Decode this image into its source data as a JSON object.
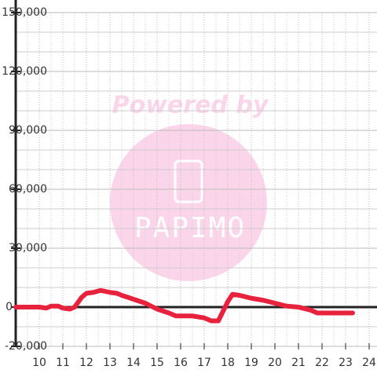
{
  "chart_data": {
    "type": "line",
    "annotations": [
      "Powered by",
      "PAPIMO"
    ],
    "x": [
      9,
      9.5,
      10,
      10.3,
      10.5,
      10.8,
      11,
      11.3,
      11.5,
      11.8,
      12,
      12.3,
      12.6,
      13,
      13.3,
      13.5,
      14,
      14.5,
      15,
      15.5,
      15.8,
      16.5,
      17,
      17.3,
      17.6,
      18,
      18.2,
      18.5,
      19,
      19.5,
      20,
      20.5,
      21,
      21.5,
      21.8,
      22.5,
      23.3
    ],
    "series": [
      {
        "color": "#e8223d",
        "values": [
          0,
          0,
          0,
          -500,
          500,
          500,
          -500,
          -1000,
          0,
          5000,
          7000,
          7500,
          8500,
          7500,
          7000,
          6000,
          4000,
          2000,
          -1000,
          -3000,
          -4500,
          -4500,
          -5500,
          -7000,
          -7000,
          2800,
          6500,
          6000,
          4500,
          3500,
          2000,
          500,
          0,
          -1500,
          -3000,
          -3000,
          -3000
        ]
      }
    ],
    "xlim": [
      9,
      24.3
    ],
    "xticks": [
      10,
      11,
      12,
      13,
      14,
      15,
      16,
      17,
      18,
      19,
      20,
      21,
      22,
      23,
      24
    ],
    "minor_xticks": [
      9.5,
      10.5,
      11.5,
      12.5,
      13.5,
      14.5,
      15.5,
      16.5,
      17.5,
      18.5,
      19.5,
      20.5,
      21.5,
      22.5,
      23.5
    ],
    "ylim": [
      -20000,
      150000
    ],
    "yticks": [
      {
        "value": -20000,
        "label": "-20,000"
      },
      0,
      {
        "value": 30000,
        "label": "30,000"
      },
      {
        "value": 60000,
        "label": "60,000"
      },
      {
        "value": 90000,
        "label": "90,000"
      },
      {
        "value": 120000,
        "label": "120,000"
      },
      {
        "value": 150000,
        "label": "150,000"
      }
    ],
    "minor_yticks": [
      -10000,
      10000,
      20000,
      40000,
      50000,
      70000,
      80000,
      100000,
      110000,
      130000,
      140000
    ],
    "grid": true
  }
}
